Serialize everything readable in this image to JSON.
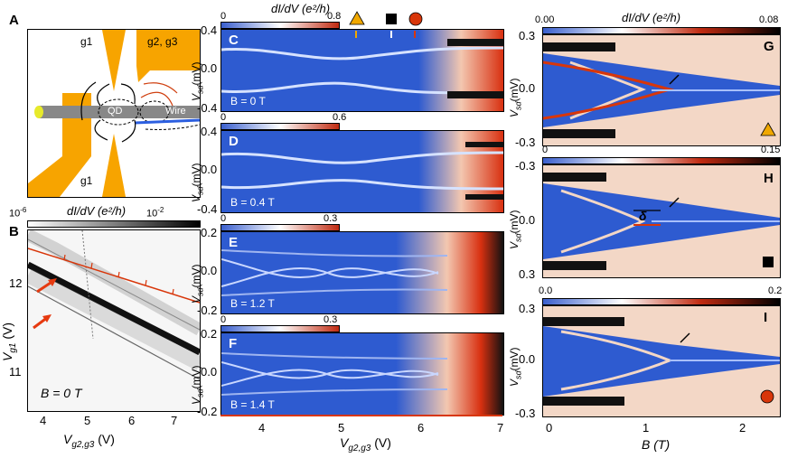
{
  "panels": {
    "A": {
      "label": "A",
      "g1_top": "g1",
      "g2g3": "g2, g3",
      "qd": "QD",
      "wire": "Wire",
      "g1_bottom": "g1"
    },
    "B": {
      "label": "B",
      "cbar_min": "10",
      "cbar_min_exp": "-6",
      "cbar_max": "10",
      "cbar_max_exp": "-2",
      "cbar_title": "dI/dV (e²/h)",
      "field": "B = 0 T",
      "yticks": [
        "12",
        "11"
      ],
      "xticks": [
        "4",
        "5",
        "6",
        "7"
      ],
      "ylabel": "V",
      "ylabel_sub": "g1",
      "ylabel_unit": "(V)",
      "xlabel": "V",
      "xlabel_sub": "g2,g3",
      "xlabel_unit": "(V)"
    },
    "C": {
      "label": "C",
      "cbar_min": "0",
      "cbar_max": "0.8",
      "field": "B = 0 T",
      "yticks": [
        "0.4",
        "0.0",
        "-0.4"
      ]
    },
    "D": {
      "label": "D",
      "cbar_min": "0",
      "cbar_max": "0.6",
      "field": "B = 0.4 T",
      "yticks": [
        "0.4",
        "0.0",
        "-0.4"
      ]
    },
    "E": {
      "label": "E",
      "cbar_min": "0",
      "cbar_max": "0.3",
      "field": "B = 1.2 T",
      "yticks": [
        "0.2",
        "0.0",
        "-0.2"
      ]
    },
    "F": {
      "label": "F",
      "cbar_min": "0",
      "cbar_max": "0.3",
      "field": "B = 1.4 T",
      "yticks": [
        "0.2",
        "0.0",
        "-0.2"
      ],
      "xticks": [
        "4",
        "5",
        "6",
        "7"
      ]
    },
    "G": {
      "label": "G",
      "cbar_min": "0.00",
      "cbar_max": "0.08",
      "yticks": [
        "0.3",
        "0.0",
        "-0.3"
      ]
    },
    "H": {
      "label": "H",
      "cbar_min": "0",
      "cbar_max": "0.15",
      "yticks": [
        "-0.3",
        "0.0",
        "0.3"
      ],
      "delta": "δ"
    },
    "I": {
      "label": "I",
      "cbar_min": "0.0",
      "cbar_max": "0.2",
      "yticks": [
        "0.3",
        "0.0",
        "-0.3"
      ],
      "xticks": [
        "0",
        "1",
        "2"
      ]
    }
  },
  "cbar_title_mid": "dI/dV (e²/h)",
  "cbar_title_right": "dI/dV (e²/h)",
  "vsd_label": "V",
  "vsd_sub": "sd",
  "vsd_unit": "(mV)",
  "mid_xlabel": "V",
  "mid_xlabel_sub": "g2,g3",
  "mid_xlabel_unit": "(V)",
  "right_xlabel": "B (T)",
  "colors": {
    "blue": "#3a5fcd",
    "red": "#c02a10",
    "orange": "#f5a800",
    "gate": "#f7a400",
    "wire": "#888888"
  },
  "markers": [
    "triangle-icon",
    "square-icon",
    "circle-icon"
  ]
}
